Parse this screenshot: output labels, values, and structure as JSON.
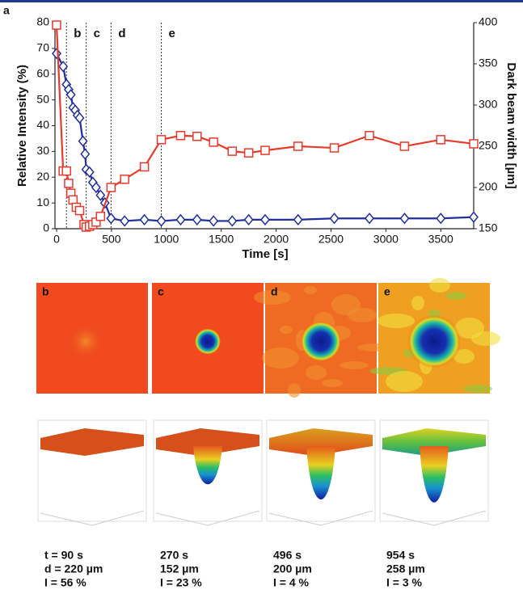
{
  "panel_label": "a",
  "chart_data": {
    "type": "line",
    "xlabel": "Time [s]",
    "ylabel": "Relative Intensity (%)",
    "y2label": "Dark beam width [µm]",
    "xlim": [
      0,
      3800
    ],
    "xticks": [
      0,
      500,
      1000,
      1500,
      2000,
      2500,
      3000,
      3500
    ],
    "ylim": [
      0,
      80
    ],
    "yticks": [
      0,
      10,
      20,
      30,
      40,
      50,
      60,
      70,
      80
    ],
    "y2lim": [
      150,
      400
    ],
    "y2ticks": [
      150,
      200,
      250,
      300,
      350,
      400
    ],
    "annotations": [
      {
        "label": "b",
        "x": 90
      },
      {
        "label": "c",
        "x": 270
      },
      {
        "label": "d",
        "x": 496
      },
      {
        "label": "e",
        "x": 954
      }
    ],
    "series": [
      {
        "color": "#1f2f9e",
        "marker": "diamond",
        "x": [
          0,
          60,
          90,
          110,
          130,
          150,
          170,
          190,
          210,
          240,
          260,
          270,
          300,
          330,
          360,
          400,
          440,
          496,
          620,
          800,
          954,
          1130,
          1280,
          1430,
          1600,
          1750,
          1900,
          2200,
          2530,
          2850,
          3170,
          3500,
          3800
        ],
        "values": [
          68,
          63,
          56,
          54,
          52,
          47,
          46,
          44,
          43,
          34,
          29,
          23,
          22,
          18,
          16,
          13,
          10,
          4,
          3,
          3.5,
          3,
          3.5,
          3.5,
          3,
          3,
          3.5,
          3.5,
          3.5,
          4,
          4,
          4,
          4,
          4.5
        ]
      },
      {
        "color": "#e8392a",
        "marker": "square",
        "axis": "y2",
        "x": [
          0,
          60,
          90,
          110,
          130,
          150,
          180,
          210,
          250,
          270,
          300,
          330,
          360,
          400,
          496,
          620,
          800,
          954,
          1130,
          1280,
          1430,
          1600,
          1750,
          1900,
          2200,
          2530,
          2850,
          3170,
          3500,
          3800
        ],
        "values": [
          397,
          220,
          220,
          205,
          193,
          185,
          176,
          172,
          155,
          152,
          153,
          155,
          158,
          165,
          200,
          210,
          225,
          258,
          263,
          262,
          255,
          244,
          242,
          245,
          250,
          248,
          263,
          250,
          258,
          253
        ]
      }
    ]
  },
  "panels": [
    {
      "label": "b",
      "caption": [
        "t = 90 s",
        "d = 220 µm",
        "I = 56 %"
      ]
    },
    {
      "label": "c",
      "caption": [
        "270 s",
        "152 µm",
        "I = 23 %"
      ]
    },
    {
      "label": "d",
      "caption": [
        "496 s",
        "200 µm",
        "I = 4 %"
      ]
    },
    {
      "label": "e",
      "caption": [
        "954 s",
        "258 µm",
        "I = 3 %"
      ]
    }
  ]
}
